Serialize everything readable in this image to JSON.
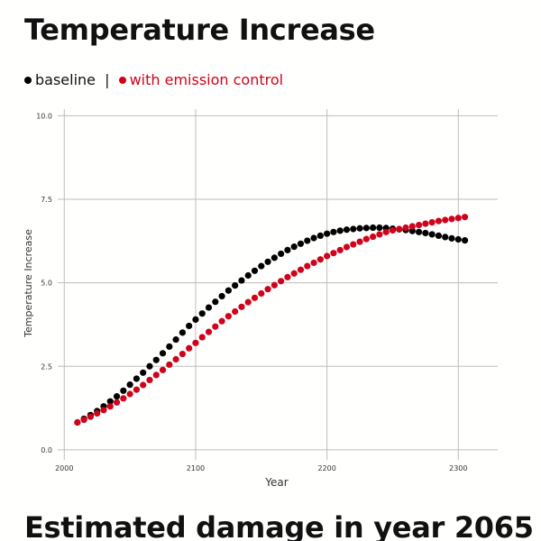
{
  "page": {
    "title": "Temperature Increase",
    "section_title": "Estimated damage in year 2065"
  },
  "legend": {
    "separator": "|",
    "items": [
      {
        "label": "baseline",
        "color": "#000000"
      },
      {
        "label": "with emission control",
        "color": "#d0021b"
      }
    ]
  },
  "chart_data": {
    "type": "scatter",
    "title": "Temperature Increase",
    "xlabel": "Year",
    "ylabel": "Temperature Increase",
    "xlim": [
      1995,
      2330
    ],
    "ylim": [
      -0.3,
      10.2
    ],
    "xticks": [
      2000,
      2100,
      2200,
      2300
    ],
    "yticks": [
      0.0,
      2.5,
      5.0,
      7.5,
      10.0
    ],
    "ytick_labels": [
      "0.0",
      "2.5",
      "5.0",
      "7.5",
      "10.0"
    ],
    "grid": true,
    "legend_position": "top-left",
    "series": [
      {
        "name": "baseline",
        "color": "#000000",
        "x": [
          2010,
          2015,
          2020,
          2025,
          2030,
          2035,
          2040,
          2045,
          2050,
          2055,
          2060,
          2065,
          2070,
          2075,
          2080,
          2085,
          2090,
          2095,
          2100,
          2105,
          2110,
          2115,
          2120,
          2125,
          2130,
          2135,
          2140,
          2145,
          2150,
          2155,
          2160,
          2165,
          2170,
          2175,
          2180,
          2185,
          2190,
          2195,
          2200,
          2205,
          2210,
          2215,
          2220,
          2225,
          2230,
          2235,
          2240,
          2245,
          2250,
          2255,
          2260,
          2265,
          2270,
          2275,
          2280,
          2285,
          2290,
          2295,
          2300,
          2305
        ],
        "y": [
          0.82,
          0.93,
          1.04,
          1.16,
          1.3,
          1.45,
          1.6,
          1.77,
          1.95,
          2.13,
          2.31,
          2.5,
          2.69,
          2.89,
          3.09,
          3.3,
          3.51,
          3.71,
          3.9,
          4.08,
          4.26,
          4.43,
          4.6,
          4.77,
          4.92,
          5.07,
          5.22,
          5.36,
          5.5,
          5.63,
          5.75,
          5.87,
          5.98,
          6.08,
          6.17,
          6.26,
          6.34,
          6.41,
          6.47,
          6.52,
          6.56,
          6.59,
          6.61,
          6.63,
          6.64,
          6.65,
          6.65,
          6.64,
          6.62,
          6.6,
          6.58,
          6.55,
          6.52,
          6.49,
          6.45,
          6.41,
          6.37,
          6.33,
          6.3,
          6.27
        ]
      },
      {
        "name": "with emission control",
        "color": "#d0021b",
        "x": [
          2010,
          2015,
          2020,
          2025,
          2030,
          2035,
          2040,
          2045,
          2050,
          2055,
          2060,
          2065,
          2070,
          2075,
          2080,
          2085,
          2090,
          2095,
          2100,
          2105,
          2110,
          2115,
          2120,
          2125,
          2130,
          2135,
          2140,
          2145,
          2150,
          2155,
          2160,
          2165,
          2170,
          2175,
          2180,
          2185,
          2190,
          2195,
          2200,
          2205,
          2210,
          2215,
          2220,
          2225,
          2230,
          2235,
          2240,
          2245,
          2250,
          2255,
          2260,
          2265,
          2270,
          2275,
          2280,
          2285,
          2290,
          2295,
          2300,
          2305
        ],
        "y": [
          0.82,
          0.9,
          0.99,
          1.09,
          1.19,
          1.3,
          1.42,
          1.54,
          1.67,
          1.8,
          1.94,
          2.09,
          2.24,
          2.39,
          2.55,
          2.71,
          2.87,
          3.04,
          3.2,
          3.37,
          3.53,
          3.69,
          3.85,
          4.0,
          4.14,
          4.28,
          4.42,
          4.55,
          4.68,
          4.81,
          4.93,
          5.05,
          5.17,
          5.28,
          5.39,
          5.5,
          5.6,
          5.7,
          5.8,
          5.89,
          5.98,
          6.07,
          6.15,
          6.23,
          6.31,
          6.38,
          6.45,
          6.52,
          6.57,
          6.61,
          6.65,
          6.69,
          6.73,
          6.77,
          6.81,
          6.85,
          6.88,
          6.91,
          6.94,
          6.97
        ]
      }
    ]
  }
}
